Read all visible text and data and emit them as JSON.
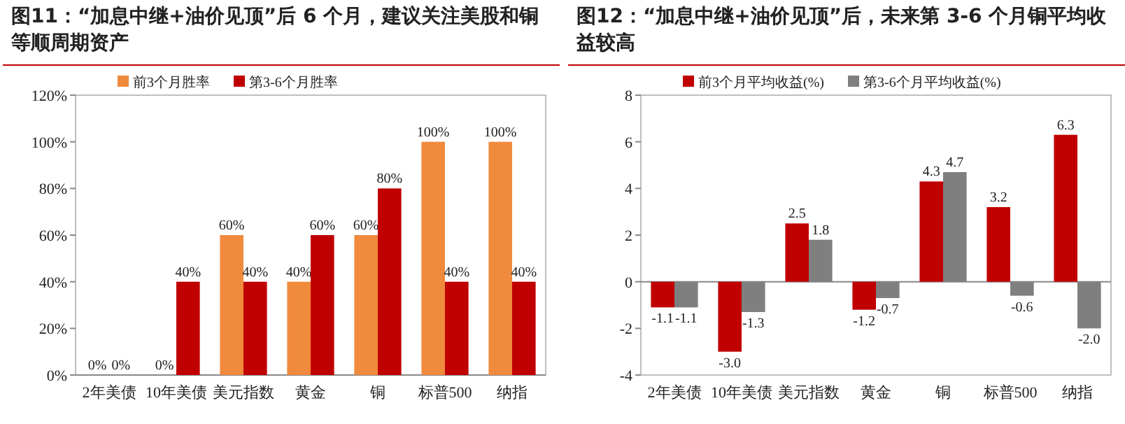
{
  "chart_data": [
    {
      "type": "bar",
      "title": "图11：“加息中继+油价见顶”后 6 个月，建议关注美股和铜等顺周期资产",
      "categories": [
        "2年美债",
        "10年美债",
        "美元指数",
        "黄金",
        "铜",
        "标普500",
        "纳指"
      ],
      "series": [
        {
          "name": "前3个月胜率",
          "color": "#f08a3c",
          "values": [
            0,
            0,
            60,
            40,
            60,
            100,
            100
          ],
          "value_labels": [
            "0%",
            "0%",
            "60%",
            "40%",
            "60%",
            "100%",
            "100%"
          ]
        },
        {
          "name": "第3-6个月胜率",
          "color": "#c00000",
          "values": [
            0,
            40,
            40,
            60,
            80,
            40,
            40
          ],
          "value_labels": [
            "0%",
            "40%",
            "40%",
            "60%",
            "80%",
            "40%",
            "40%"
          ]
        }
      ],
      "ylim": [
        0,
        120
      ],
      "yticks": [
        {
          "value": 0,
          "label": "0%"
        },
        {
          "value": 20,
          "label": "20%"
        },
        {
          "value": 40,
          "label": "40%"
        },
        {
          "value": 60,
          "label": "60%"
        },
        {
          "value": 80,
          "label": "80%"
        },
        {
          "value": 100,
          "label": "100%"
        },
        {
          "value": 120,
          "label": "120%"
        }
      ],
      "legend": "top"
    },
    {
      "type": "bar",
      "title": "图12：“加息中继+油价见顶”后，未来第 3-6 个月铜平均收益较高",
      "categories": [
        "2年美债",
        "10年美债",
        "美元指数",
        "黄金",
        "铜",
        "标普500",
        "纳指"
      ],
      "series": [
        {
          "name": "前3个月平均收益(%)",
          "color": "#c00000",
          "values": [
            -1.1,
            -3.0,
            2.5,
            -1.2,
            4.3,
            3.2,
            6.3
          ],
          "value_labels": [
            "-1.1",
            "-3.0",
            "2.5",
            "-1.2",
            "4.3",
            "3.2",
            "6.3"
          ]
        },
        {
          "name": "第3-6个月平均收益(%)",
          "color": "#7f7f7f",
          "values": [
            -1.1,
            -1.3,
            1.8,
            -0.7,
            4.7,
            -0.6,
            -2.0
          ],
          "value_labels": [
            "-1.1",
            "-1.3",
            "1.8",
            "-0.7",
            "4.7",
            "-0.6",
            "-2.0"
          ]
        }
      ],
      "ylim": [
        -4,
        8
      ],
      "yticks": [
        -4,
        -2,
        0,
        2,
        4,
        6,
        8
      ],
      "legend": "top"
    }
  ]
}
